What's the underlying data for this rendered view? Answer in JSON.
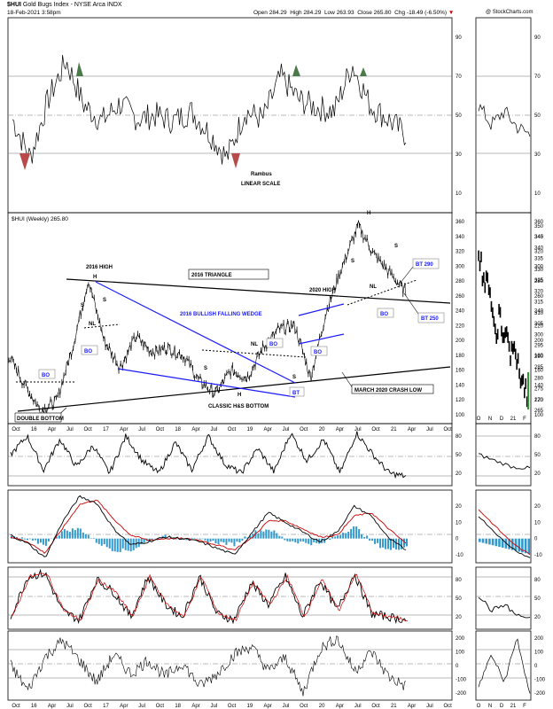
{
  "header": {
    "symbol": "$HUI",
    "name": "Gold Bugs Index - NYSE Arca",
    "exchange": "INDX",
    "date": "18-Feb-2021 3:58pm",
    "copyright": "@ StockCharts.com",
    "open_label": "Open",
    "open": "284.29",
    "high_label": "High",
    "high": "284.29",
    "low_label": "Low",
    "low": "263.93",
    "close_label": "Close",
    "close": "265.80",
    "chg_label": "Chg",
    "chg": "-18.49 (-6.50%)",
    "down_color": "#cc0000"
  },
  "colors": {
    "accent": "#1a1aff",
    "pattern_line": "#000000",
    "overbought": "#4a7a4a",
    "oversold": "#b84a4a",
    "macd_hist": "#3399cc",
    "signal": "#cc0000"
  },
  "main_legend": "$HUI (Weekly) 265.80",
  "annotations": {
    "rambus": "Rambus",
    "scale": "LINEAR SCALE",
    "high_2016": "2016 HIGH",
    "triangle_2016": "2016 TRIANGLE",
    "high_2020": "2020 HIGH",
    "wedge": "2016 BULLISH FALLING WEDGE",
    "hs_bottom": "CLASSIC H&S BOTTOM",
    "crash": "MARCH 2020 CRASH LOW",
    "double_bottom": "DOUBLE BOTTOM",
    "bt290": "BT 290",
    "bt250": "BT 250",
    "bo": "BO",
    "bt": "BT",
    "h": "H",
    "s": "S",
    "nl": "NL"
  },
  "chart_data": [
    {
      "type": "line",
      "panel": "rsi_top",
      "y_ticks": [
        "90",
        "70",
        "50",
        "30",
        "10"
      ],
      "ylim": [
        0,
        100
      ],
      "x": [
        "Oct 2015",
        "Jan 2016",
        "Apr 2016",
        "Jul 2016",
        "Oct 2016",
        "Jan 2017",
        "Apr 2017",
        "Jul 2017",
        "Oct 2017",
        "Jan 2018",
        "Apr 2018",
        "Jul 2018",
        "Oct 2018",
        "Jan 2019",
        "Apr 2019",
        "Jul 2019",
        "Oct 2019",
        "Jan 2020",
        "Apr 2020",
        "Jul 2020",
        "Oct 2020",
        "Jan 2021",
        "Feb 2021"
      ],
      "values": [
        48,
        28,
        58,
        78,
        55,
        47,
        56,
        48,
        50,
        47,
        52,
        41,
        28,
        52,
        48,
        70,
        58,
        54,
        52,
        76,
        55,
        48,
        40
      ]
    },
    {
      "type": "line",
      "panel": "price_weekly",
      "title": "$HUI (Weekly) 265.80",
      "y_ticks": [
        "360",
        "340",
        "320",
        "300",
        "280",
        "260",
        "240",
        "220",
        "200",
        "180",
        "160",
        "140",
        "120",
        "100"
      ],
      "ylim": [
        100,
        360
      ],
      "x_ticks": [
        "Oct",
        "16",
        "Apr",
        "Jul",
        "Oct",
        "17",
        "Apr",
        "Jul",
        "Oct",
        "18",
        "Apr",
        "Jul",
        "Oct",
        "19",
        "Apr",
        "Jul",
        "Oct",
        "20",
        "Apr",
        "Jul",
        "Oct",
        "21",
        "Apr",
        "Jul",
        "Oct"
      ],
      "x": [
        "Jul 2015",
        "Sep 2015",
        "Dec 2015",
        "Jan 2016",
        "Apr 2016",
        "Jul 2016",
        "Sep 2016",
        "Dec 2016",
        "Feb 2017",
        "Jun 2017",
        "Sep 2017",
        "Feb 2018",
        "Jul 2018",
        "Sep 2018",
        "Jan 2019",
        "May 2019",
        "Jul 2019",
        "Sep 2019",
        "Dec 2019",
        "Mar 2020",
        "Apr 2020",
        "Jun 2020",
        "Aug 2020",
        "Oct 2020",
        "Dec 2020",
        "Feb 2021"
      ],
      "values": [
        180,
        140,
        106,
        118,
        190,
        282,
        200,
        164,
        205,
        185,
        190,
        180,
        145,
        128,
        160,
        150,
        190,
        215,
        220,
        150,
        240,
        300,
        355,
        315,
        290,
        265
      ]
    },
    {
      "type": "bar",
      "panel": "price_daily_inset",
      "y_ticks": [
        "350",
        "345",
        "340",
        "335",
        "330",
        "325",
        "320",
        "315",
        "310",
        "305",
        "300",
        "295",
        "290",
        "285",
        "280",
        "275",
        "270",
        "265"
      ],
      "ylim": [
        263,
        352
      ],
      "x_ticks": [
        "O",
        "N",
        "D",
        "21",
        "F"
      ],
      "values": [
        340,
        330,
        322,
        325,
        308,
        300,
        312,
        295,
        305,
        290,
        300,
        285,
        280,
        275,
        266
      ]
    },
    {
      "type": "line",
      "panel": "rsi_weekly",
      "y_ticks": [
        "80",
        "50",
        "20"
      ],
      "ylim": [
        0,
        100
      ],
      "values": [
        50,
        80,
        25,
        75,
        30,
        65,
        20,
        80,
        40,
        20,
        70,
        25,
        80,
        35,
        20,
        60,
        22,
        85,
        40,
        75,
        20,
        85,
        50,
        20,
        15
      ]
    },
    {
      "type": "line",
      "panel": "macd",
      "y_ticks": [
        "20",
        "10",
        "0",
        "-10"
      ],
      "ylim": [
        -15,
        30
      ],
      "series": [
        {
          "values": [
            2,
            -3,
            -12,
            10,
            26,
            22,
            6,
            -4,
            -2,
            1,
            0,
            -2,
            -6,
            -10,
            3,
            16,
            10,
            4,
            -2,
            4,
            20,
            14,
            0,
            -7
          ]
        },
        {
          "values": [
            1,
            -2,
            -9,
            6,
            21,
            24,
            12,
            2,
            -1,
            0,
            0,
            -1,
            -4,
            -7,
            0,
            11,
            11,
            6,
            1,
            2,
            14,
            16,
            6,
            -3
          ]
        }
      ]
    },
    {
      "type": "line",
      "panel": "stochastic",
      "y_ticks": [
        "80",
        "50",
        "20"
      ],
      "ylim": [
        0,
        100
      ],
      "values": [
        20,
        85,
        90,
        30,
        15,
        80,
        60,
        20,
        85,
        40,
        20,
        85,
        25,
        15,
        75,
        40,
        85,
        20,
        80,
        30,
        90,
        25,
        20,
        15
      ]
    },
    {
      "type": "line",
      "panel": "cci",
      "y_ticks": [
        "200",
        "100",
        "0",
        "-100",
        "-200"
      ],
      "ylim": [
        -250,
        250
      ],
      "values": [
        0,
        -180,
        60,
        180,
        40,
        -120,
        80,
        -60,
        40,
        -80,
        20,
        -150,
        -60,
        80,
        140,
        -40,
        60,
        -200,
        120,
        200,
        -40,
        100,
        -80,
        -150
      ]
    }
  ]
}
